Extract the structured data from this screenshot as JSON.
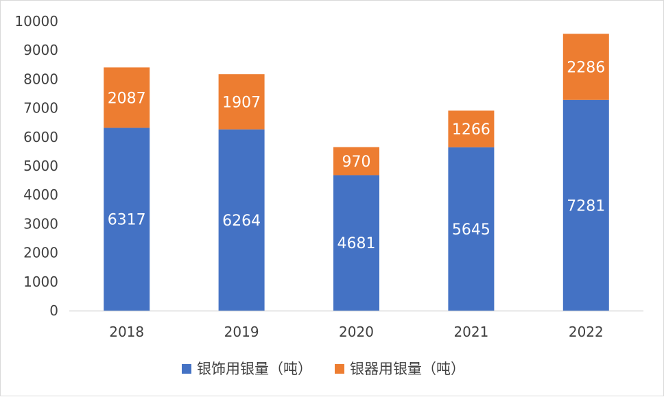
{
  "chart_data": {
    "type": "bar",
    "stacked": true,
    "categories": [
      "2018",
      "2019",
      "2020",
      "2021",
      "2022"
    ],
    "series": [
      {
        "name": "银饰用银量（吨）",
        "color": "#4472c4",
        "values": [
          6317,
          6264,
          4681,
          5645,
          7281
        ]
      },
      {
        "name": "银器用银量（吨）",
        "color": "#ed7d31",
        "values": [
          2087,
          1907,
          970,
          1266,
          2286
        ]
      }
    ],
    "ylim": [
      0,
      10000
    ],
    "yticks": [
      0,
      1000,
      2000,
      3000,
      4000,
      5000,
      6000,
      7000,
      8000,
      9000,
      10000
    ],
    "legend_position": "bottom",
    "grid": false,
    "data_labels": true
  }
}
